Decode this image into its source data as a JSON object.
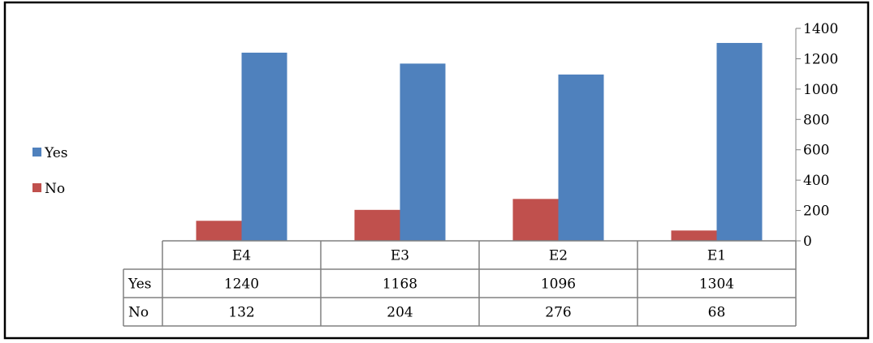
{
  "chart_data": {
    "type": "bar",
    "title": "",
    "xlabel": "",
    "ylabel": "",
    "categories": [
      "E4",
      "E3",
      "E2",
      "E1"
    ],
    "series": [
      {
        "name": "No",
        "color": "#c0504d",
        "values": [
          132,
          204,
          276,
          68
        ]
      },
      {
        "name": "Yes",
        "color": "#4f81bd",
        "values": [
          1240,
          1168,
          1096,
          1304
        ]
      }
    ],
    "ylim": [
      0,
      1400
    ],
    "yticks": [
      0,
      200,
      400,
      600,
      800,
      1000,
      1200,
      1400
    ],
    "y_axis_side": "right",
    "grid": false,
    "legend": {
      "placement": "left",
      "entries": [
        "Yes",
        "No"
      ]
    },
    "data_table": {
      "rows": [
        {
          "label": "Yes",
          "values": [
            "1240",
            "1168",
            "1096",
            "1304"
          ]
        },
        {
          "label": "No",
          "values": [
            "132",
            "204",
            "276",
            "68"
          ]
        }
      ]
    }
  }
}
